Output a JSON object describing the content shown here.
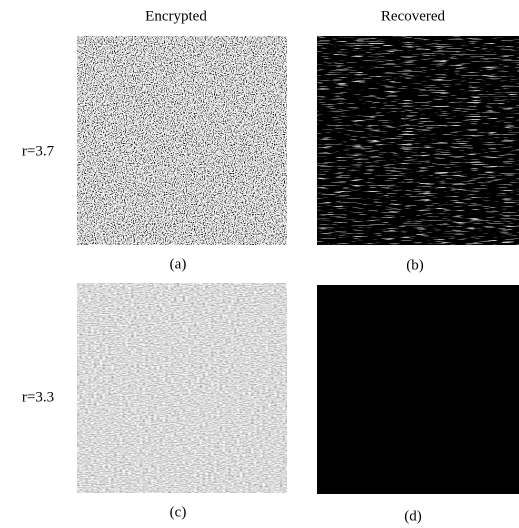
{
  "columns": [
    "Encrypted",
    "Recovered"
  ],
  "rows": [
    {
      "label": "r=3.7",
      "panels": [
        "(a)",
        "(b)"
      ]
    },
    {
      "label": "r=3.3",
      "panels": [
        "(c)",
        "(d)"
      ]
    }
  ]
}
